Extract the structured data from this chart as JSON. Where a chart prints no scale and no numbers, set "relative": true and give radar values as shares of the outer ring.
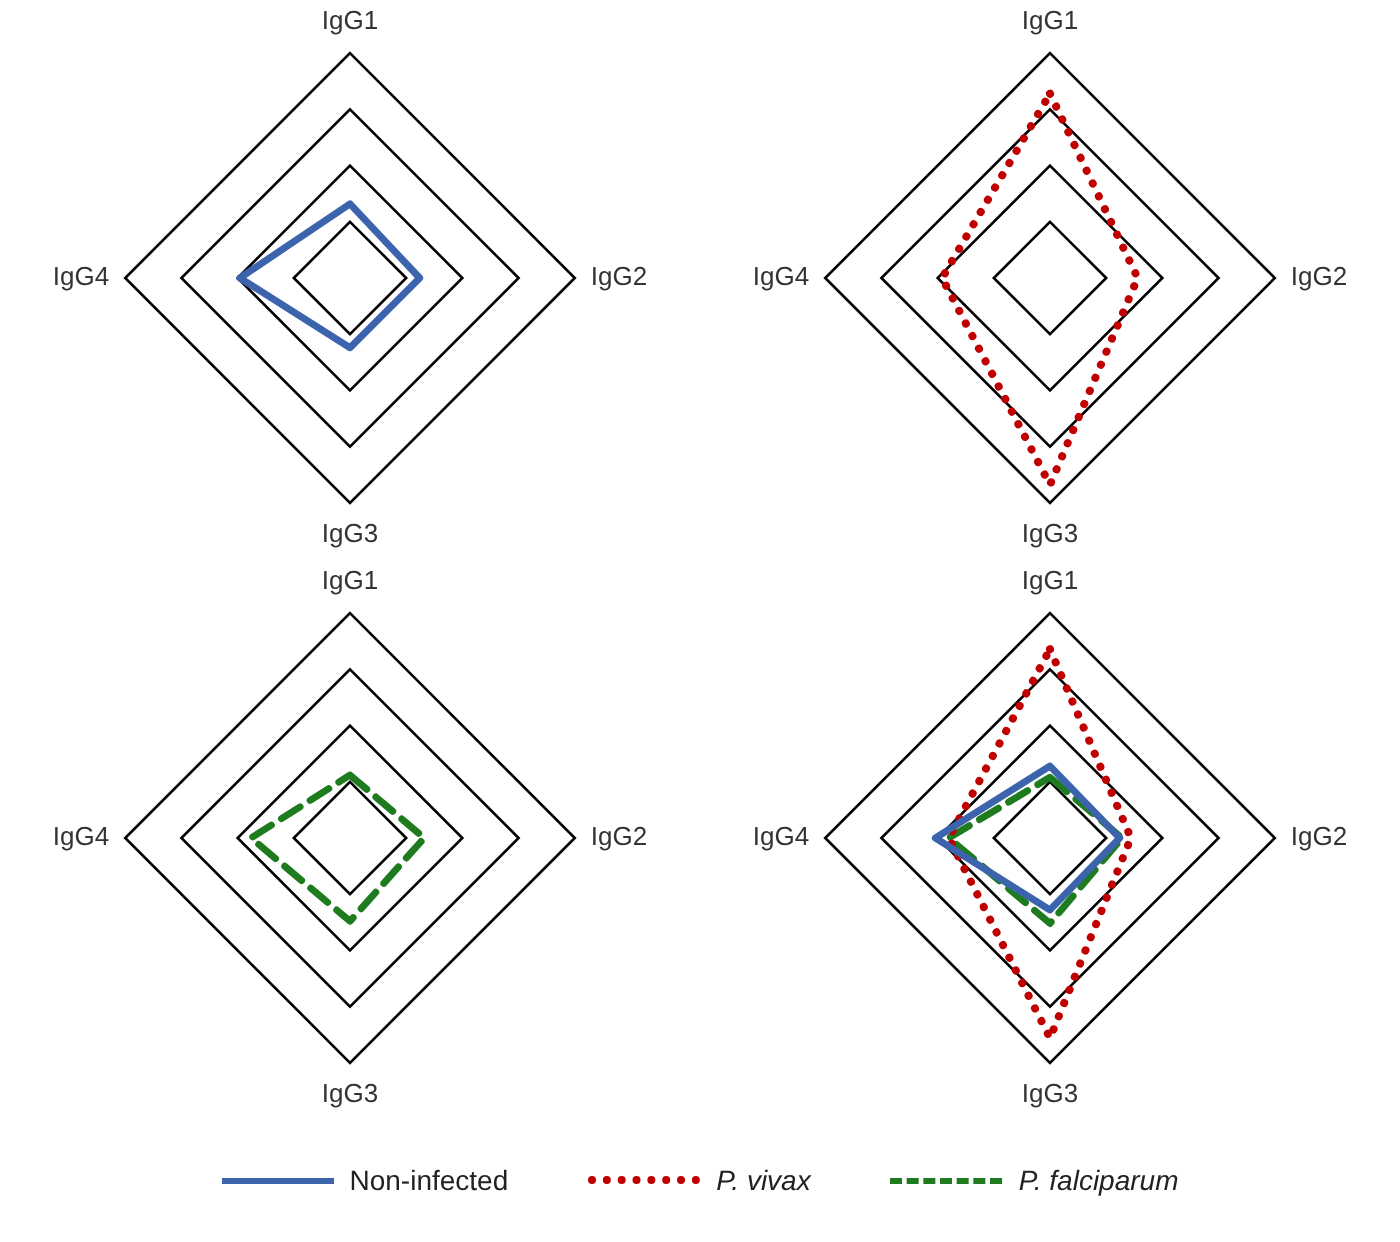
{
  "chart_data": [
    {
      "type": "radar",
      "relative": true,
      "categories": [
        "IgG1",
        "IgG2",
        "IgG3",
        "IgG4"
      ],
      "marker": "none",
      "series": [
        {
          "color": "#3b64ad",
          "line_style": "solid",
          "values": [
            0.33,
            0.31,
            0.31,
            0.49
          ]
        }
      ]
    },
    {
      "type": "radar",
      "relative": true,
      "categories": [
        "IgG1",
        "IgG2",
        "IgG3",
        "IgG4"
      ],
      "marker": "none",
      "series": [
        {
          "color": "#c00000",
          "line_style": "dotted",
          "values": [
            0.82,
            0.39,
            0.92,
            0.48
          ]
        }
      ]
    },
    {
      "type": "radar",
      "relative": true,
      "categories": [
        "IgG1",
        "IgG2",
        "IgG3",
        "IgG4"
      ],
      "marker": "none",
      "series": [
        {
          "color": "#1e7b1e",
          "line_style": "dashed",
          "values": [
            0.28,
            0.33,
            0.37,
            0.44
          ]
        }
      ]
    },
    {
      "type": "radar",
      "relative": true,
      "categories": [
        "IgG1",
        "IgG2",
        "IgG3",
        "IgG4"
      ],
      "marker": "none",
      "legend": "bottom",
      "series": [
        {
          "name": "Non-infected",
          "color": "#3b64ad",
          "line_style": "solid",
          "values": [
            0.32,
            0.31,
            0.32,
            0.51
          ]
        },
        {
          "name": "P. vivax",
          "color": "#c00000",
          "line_style": "dotted",
          "values": [
            0.84,
            0.36,
            0.89,
            0.45
          ]
        },
        {
          "name": "P. falciparum",
          "color": "#1e7b1e",
          "line_style": "dashed",
          "values": [
            0.27,
            0.32,
            0.38,
            0.45
          ]
        }
      ]
    }
  ]
}
